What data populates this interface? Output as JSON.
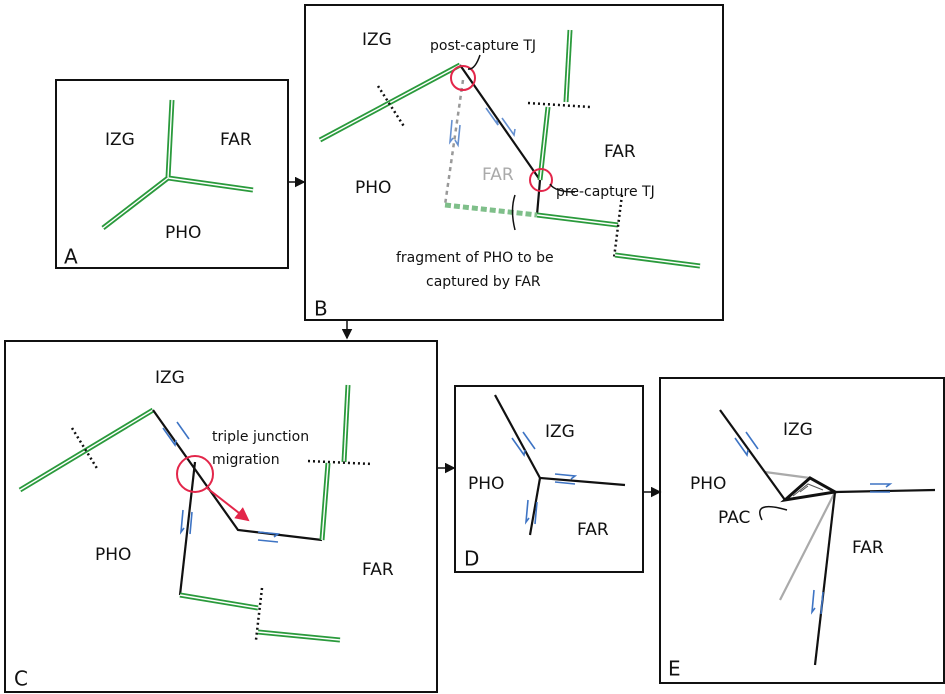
{
  "panels": [
    {
      "letter": "A",
      "labels": [
        "IZG",
        "FAR",
        "PHO"
      ]
    },
    {
      "letter": "B",
      "labels": [
        "IZG",
        "FAR",
        "PHO",
        "FAR"
      ],
      "annotations": [
        "post-capture TJ",
        "pre-capture TJ",
        "fragment of PHO to be",
        "captured by FAR"
      ]
    },
    {
      "letter": "C",
      "labels": [
        "IZG",
        "PHO",
        "FAR"
      ],
      "annotations": [
        "triple junction",
        "migration"
      ]
    },
    {
      "letter": "D",
      "labels": [
        "IZG",
        "PHO",
        "FAR"
      ]
    },
    {
      "letter": "E",
      "labels": [
        "IZG",
        "PHO",
        "FAR"
      ],
      "annotations": [
        "PAC"
      ]
    }
  ]
}
